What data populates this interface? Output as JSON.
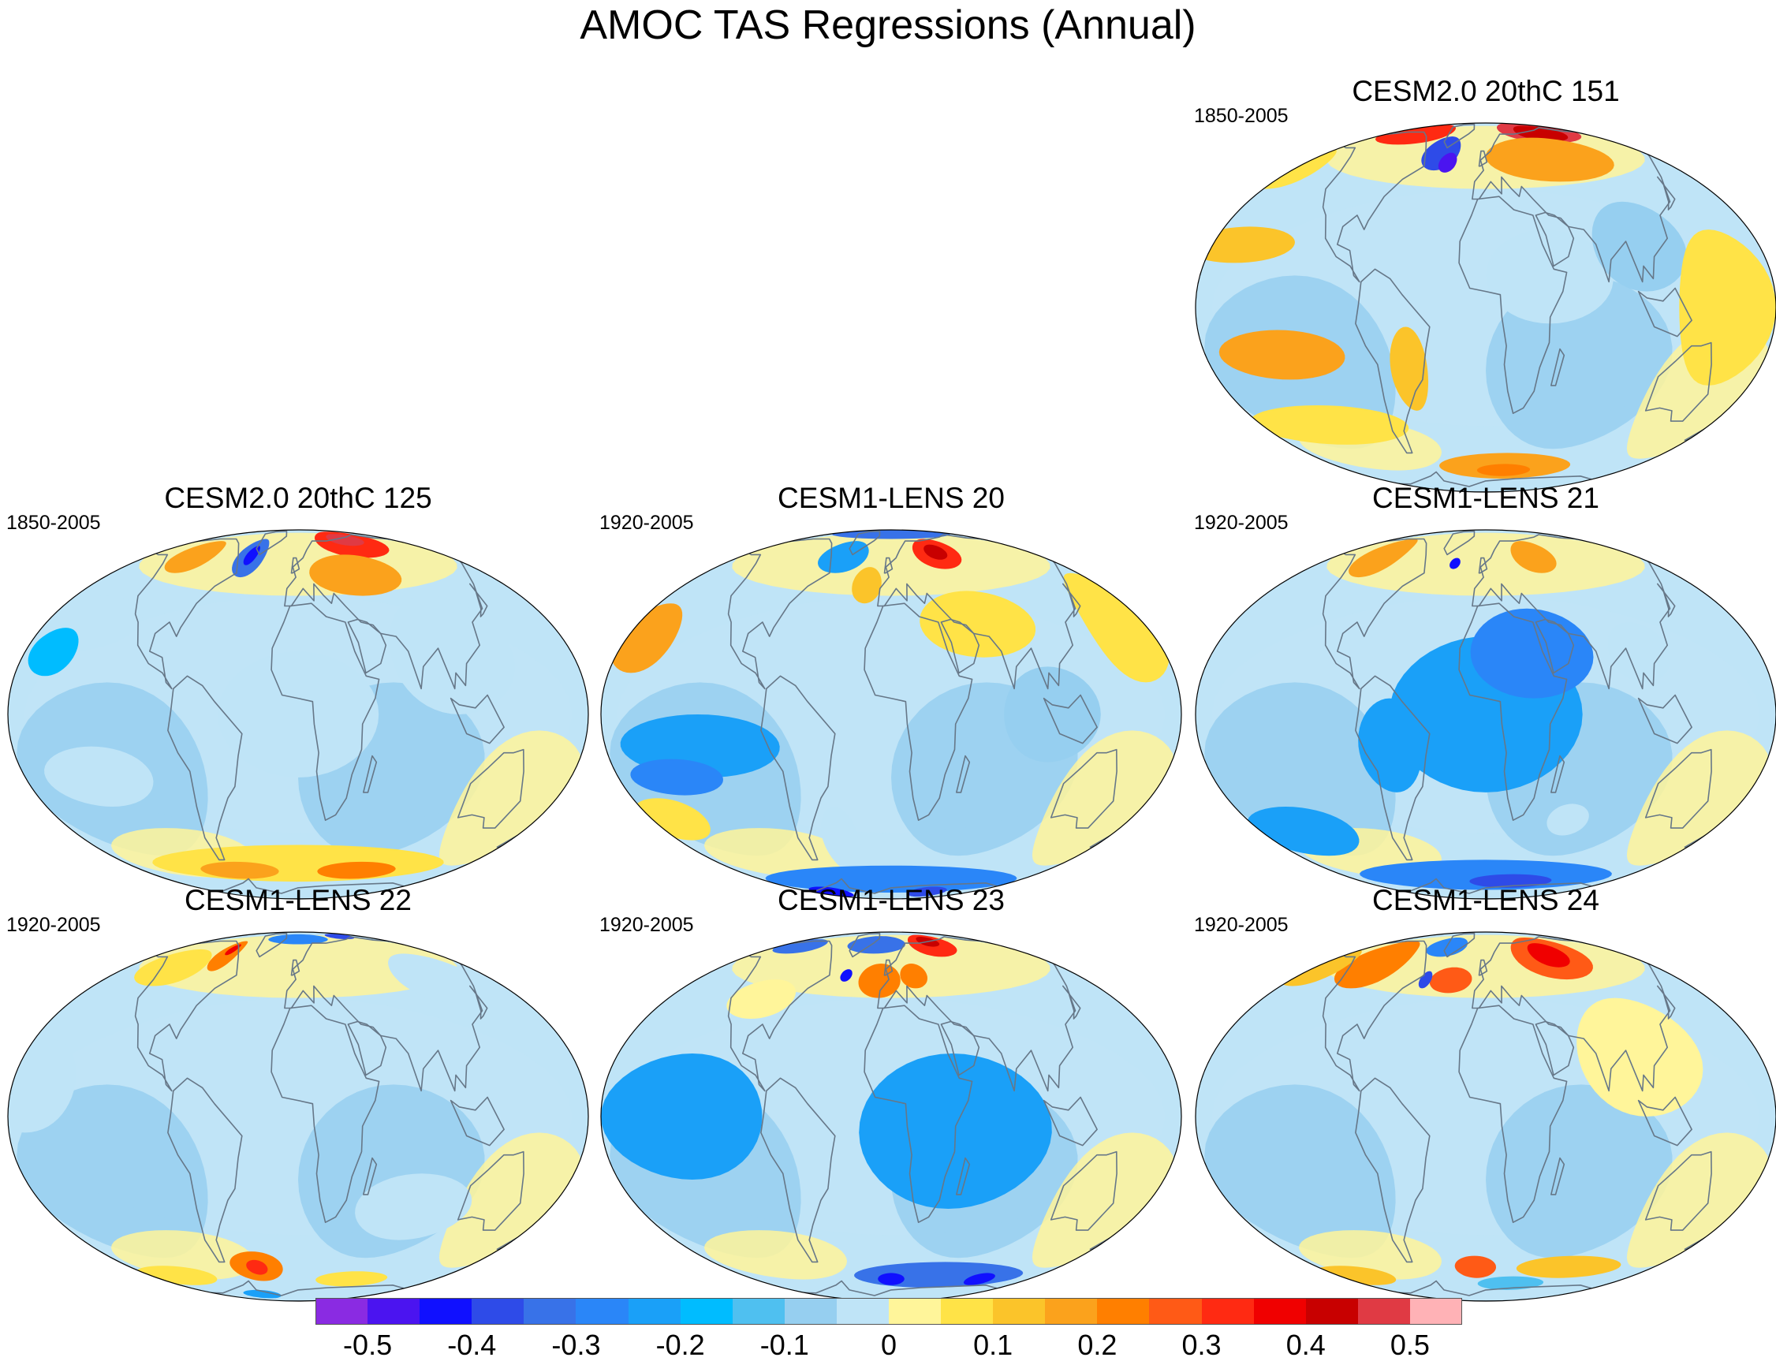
{
  "figure": {
    "title": "AMOC TAS Regressions (Annual)"
  },
  "panels": [
    {
      "id": "p0",
      "title": "CESM2.0 20thC 151",
      "period": "1850-2005",
      "blobs": [
        {
          "lon": 80,
          "lat": 75,
          "rx": 60,
          "ry": 12,
          "c": 20
        },
        {
          "lon": 80,
          "lat": 72,
          "rx": 35,
          "ry": 8,
          "c": 19
        },
        {
          "lon": -100,
          "lat": 72,
          "rx": 50,
          "ry": 10,
          "c": 17
        },
        {
          "lon": -45,
          "lat": 58,
          "rx": 18,
          "ry": 10,
          "c": 3
        },
        {
          "lon": -35,
          "lat": 52,
          "rx": 8,
          "ry": 5,
          "c": 1
        },
        {
          "lon": 60,
          "lat": 55,
          "rx": 60,
          "ry": 12,
          "c": 14
        },
        {
          "lon": -160,
          "lat": 20,
          "rx": 35,
          "ry": 6,
          "c": 13
        },
        {
          "lon": -130,
          "lat": -15,
          "rx": 40,
          "ry": 8,
          "c": 14
        },
        {
          "lon": -50,
          "lat": -20,
          "rx": 12,
          "ry": 14,
          "c": 13
        },
        {
          "lon": 20,
          "lat": -60,
          "rx": 70,
          "ry": 8,
          "c": 14
        },
        {
          "lon": 20,
          "lat": -62,
          "rx": 30,
          "ry": 4,
          "c": 15
        },
        {
          "lon": 40,
          "lat": 10,
          "rx": 40,
          "ry": 15,
          "c": 10
        },
        {
          "lon": 100,
          "lat": 20,
          "rx": 30,
          "ry": 15,
          "c": 9
        },
        {
          "lon": 150,
          "lat": 0,
          "rx": 30,
          "ry": 25,
          "c": 12
        },
        {
          "lon": -170,
          "lat": 50,
          "rx": 25,
          "ry": 10,
          "c": 12
        },
        {
          "lon": -120,
          "lat": -40,
          "rx": 60,
          "ry": 8,
          "c": 12
        }
      ]
    },
    {
      "id": "p1",
      "title": "CESM2.0 20thC 125",
      "period": "1850-2005",
      "blobs": [
        {
          "lon": 70,
          "lat": 70,
          "rx": 45,
          "ry": 12,
          "c": 17
        },
        {
          "lon": 70,
          "lat": 72,
          "rx": 25,
          "ry": 6,
          "c": 20
        },
        {
          "lon": -50,
          "lat": 60,
          "rx": 15,
          "ry": 12,
          "c": 4
        },
        {
          "lon": -50,
          "lat": 60,
          "rx": 6,
          "ry": 6,
          "c": 2
        },
        {
          "lon": -110,
          "lat": 60,
          "rx": 22,
          "ry": 10,
          "c": 14
        },
        {
          "lon": 50,
          "lat": 50,
          "rx": 40,
          "ry": 10,
          "c": 14
        },
        {
          "lon": -150,
          "lat": 30,
          "rx": 40,
          "ry": 10,
          "c": 10
        },
        {
          "lon": -160,
          "lat": 20,
          "rx": 15,
          "ry": 8,
          "c": 7
        },
        {
          "lon": 0,
          "lat": -55,
          "rx": 140,
          "ry": 10,
          "c": 12
        },
        {
          "lon": -60,
          "lat": -58,
          "rx": 40,
          "ry": 5,
          "c": 14
        },
        {
          "lon": 60,
          "lat": -58,
          "rx": 40,
          "ry": 5,
          "c": 15
        },
        {
          "lon": 0,
          "lat": 0,
          "rx": 50,
          "ry": 20,
          "c": 10
        },
        {
          "lon": 100,
          "lat": 20,
          "rx": 40,
          "ry": 20,
          "c": 10
        },
        {
          "lon": -130,
          "lat": -20,
          "rx": 35,
          "ry": 10,
          "c": 10
        }
      ]
    },
    {
      "id": "p2",
      "title": "CESM1-LENS 20",
      "period": "1920-2005",
      "blobs": [
        {
          "lon": 50,
          "lat": 62,
          "rx": 25,
          "ry": 10,
          "c": 17
        },
        {
          "lon": 50,
          "lat": 62,
          "rx": 12,
          "ry": 5,
          "c": 19
        },
        {
          "lon": 0,
          "lat": 80,
          "rx": 120,
          "ry": 8,
          "c": 4
        },
        {
          "lon": -50,
          "lat": 60,
          "rx": 25,
          "ry": 10,
          "c": 6
        },
        {
          "lon": -20,
          "lat": 45,
          "rx": 12,
          "ry": 8,
          "c": 13
        },
        {
          "lon": -165,
          "lat": 25,
          "rx": 20,
          "ry": 12,
          "c": 14
        },
        {
          "lon": -120,
          "lat": -10,
          "rx": 50,
          "ry": 10,
          "c": 6
        },
        {
          "lon": -140,
          "lat": -20,
          "rx": 30,
          "ry": 6,
          "c": 5
        },
        {
          "lon": -160,
          "lat": -35,
          "rx": 25,
          "ry": 8,
          "c": 12
        },
        {
          "lon": -40,
          "lat": -45,
          "rx": 15,
          "ry": 15,
          "c": 10
        },
        {
          "lon": 0,
          "lat": -65,
          "rx": 150,
          "ry": 10,
          "c": 5
        },
        {
          "lon": -100,
          "lat": -75,
          "rx": 30,
          "ry": 6,
          "c": 2
        },
        {
          "lon": 60,
          "lat": -75,
          "rx": 30,
          "ry": 6,
          "c": 3
        },
        {
          "lon": 60,
          "lat": 30,
          "rx": 40,
          "ry": 12,
          "c": 12
        },
        {
          "lon": 160,
          "lat": 30,
          "rx": 25,
          "ry": 20,
          "c": 12
        },
        {
          "lon": 100,
          "lat": 0,
          "rx": 30,
          "ry": 15,
          "c": 9
        }
      ]
    },
    {
      "id": "p3",
      "title": "CESM1-LENS 21",
      "period": "1920-2005",
      "blobs": [
        {
          "lon": -110,
          "lat": 60,
          "rx": 22,
          "ry": 12,
          "c": 14
        },
        {
          "lon": 50,
          "lat": 60,
          "rx": 22,
          "ry": 10,
          "c": 14
        },
        {
          "lon": 0,
          "lat": 0,
          "rx": 60,
          "ry": 25,
          "c": 6
        },
        {
          "lon": 30,
          "lat": 20,
          "rx": 40,
          "ry": 15,
          "c": 5
        },
        {
          "lon": -60,
          "lat": -10,
          "rx": 20,
          "ry": 15,
          "c": 6
        },
        {
          "lon": 0,
          "lat": -62,
          "rx": 140,
          "ry": 10,
          "c": 5
        },
        {
          "lon": 30,
          "lat": -65,
          "rx": 50,
          "ry": 5,
          "c": 3
        },
        {
          "lon": 100,
          "lat": 20,
          "rx": 20,
          "ry": 10,
          "c": 10
        },
        {
          "lon": -140,
          "lat": -40,
          "rx": 40,
          "ry": 10,
          "c": 6
        },
        {
          "lon": 60,
          "lat": -35,
          "rx": 15,
          "ry": 6,
          "c": 10
        },
        {
          "lon": -30,
          "lat": 55,
          "rx": 5,
          "ry": 3,
          "c": 2
        }
      ]
    },
    {
      "id": "p4",
      "title": "CESM1-LENS 22",
      "period": "1920-2005",
      "blobs": [
        {
          "lon": -80,
          "lat": 62,
          "rx": 12,
          "ry": 10,
          "c": 15
        },
        {
          "lon": -80,
          "lat": 65,
          "rx": 5,
          "ry": 4,
          "c": 18
        },
        {
          "lon": 0,
          "lat": 75,
          "rx": 50,
          "ry": 6,
          "c": 5
        },
        {
          "lon": 80,
          "lat": 78,
          "rx": 25,
          "ry": 4,
          "c": 3
        },
        {
          "lon": -120,
          "lat": 55,
          "rx": 30,
          "ry": 10,
          "c": 12
        },
        {
          "lon": -40,
          "lat": -55,
          "rx": 25,
          "ry": 8,
          "c": 15
        },
        {
          "lon": -40,
          "lat": -55,
          "rx": 10,
          "ry": 4,
          "c": 17
        },
        {
          "lon": -170,
          "lat": 10,
          "rx": 30,
          "ry": 15,
          "c": 10
        },
        {
          "lon": 80,
          "lat": -30,
          "rx": 40,
          "ry": 12,
          "c": 10
        },
        {
          "lon": -130,
          "lat": -60,
          "rx": 40,
          "ry": 6,
          "c": 12
        },
        {
          "lon": 60,
          "lat": -62,
          "rx": 40,
          "ry": 5,
          "c": 12
        },
        {
          "lon": -60,
          "lat": -75,
          "rx": 30,
          "ry": 5,
          "c": 6
        },
        {
          "lon": 120,
          "lat": 50,
          "rx": 35,
          "ry": 12,
          "c": 10
        }
      ]
    },
    {
      "id": "p5",
      "title": "CESM1-LENS 23",
      "period": "1920-2005",
      "blobs": [
        {
          "lon": 55,
          "lat": 70,
          "rx": 30,
          "ry": 10,
          "c": 17
        },
        {
          "lon": 55,
          "lat": 72,
          "rx": 15,
          "ry": 5,
          "c": 19
        },
        {
          "lon": -20,
          "lat": 70,
          "rx": 40,
          "ry": 8,
          "c": 4
        },
        {
          "lon": -120,
          "lat": 68,
          "rx": 30,
          "ry": 6,
          "c": 4
        },
        {
          "lon": -10,
          "lat": 48,
          "rx": 18,
          "ry": 8,
          "c": 15
        },
        {
          "lon": 20,
          "lat": 50,
          "rx": 12,
          "ry": 6,
          "c": 15
        },
        {
          "lon": -40,
          "lat": 50,
          "rx": 5,
          "ry": 3,
          "c": 2
        },
        {
          "lon": -130,
          "lat": 0,
          "rx": 50,
          "ry": 20,
          "c": 6
        },
        {
          "lon": 40,
          "lat": -5,
          "rx": 60,
          "ry": 25,
          "c": 6
        },
        {
          "lon": 50,
          "lat": -60,
          "rx": 90,
          "ry": 8,
          "c": 4
        },
        {
          "lon": 0,
          "lat": -62,
          "rx": 15,
          "ry": 4,
          "c": 2
        },
        {
          "lon": 100,
          "lat": -62,
          "rx": 15,
          "ry": 4,
          "c": 2
        },
        {
          "lon": -100,
          "lat": 40,
          "rx": 25,
          "ry": 8,
          "c": 11
        }
      ]
    },
    {
      "id": "p6",
      "title": "CESM1-LENS 24",
      "period": "1920-2005",
      "blobs": [
        {
          "lon": 70,
          "lat": 62,
          "rx": 40,
          "ry": 14,
          "c": 16
        },
        {
          "lon": 70,
          "lat": 62,
          "rx": 20,
          "ry": 8,
          "c": 18
        },
        {
          "lon": -110,
          "lat": 58,
          "rx": 30,
          "ry": 14,
          "c": 15
        },
        {
          "lon": -30,
          "lat": 48,
          "rx": 18,
          "ry": 6,
          "c": 16
        },
        {
          "lon": -50,
          "lat": 68,
          "rx": 25,
          "ry": 8,
          "c": 5
        },
        {
          "lon": -52,
          "lat": 48,
          "rx": 5,
          "ry": 4,
          "c": 3
        },
        {
          "lon": -160,
          "lat": 55,
          "rx": 25,
          "ry": 10,
          "c": 13
        },
        {
          "lon": -10,
          "lat": -55,
          "rx": 20,
          "ry": 6,
          "c": 16
        },
        {
          "lon": 80,
          "lat": -55,
          "rx": 50,
          "ry": 6,
          "c": 13
        },
        {
          "lon": -140,
          "lat": -60,
          "rx": 40,
          "ry": 6,
          "c": 13
        },
        {
          "lon": 100,
          "lat": 20,
          "rx": 40,
          "ry": 20,
          "c": 11
        },
        {
          "lon": 30,
          "lat": -65,
          "rx": 40,
          "ry": 5,
          "c": 8
        }
      ]
    }
  ],
  "colorbar": {
    "labels": [
      "-0.5",
      "-0.4",
      "-0.3",
      "-0.2",
      "-0.1",
      "0",
      "0.1",
      "0.2",
      "0.3",
      "0.4",
      "0.5"
    ],
    "colors": [
      "#8a2be2",
      "#4b14f0",
      "#1010ff",
      "#2e4be8",
      "#3872e8",
      "#2a86f8",
      "#1aa0f8",
      "#00bcff",
      "#4fc0f0",
      "#96cff0",
      "#bfe4f7",
      "#fff59a",
      "#ffe347",
      "#fbc42a",
      "#fba21c",
      "#ff7f00",
      "#ff5a16",
      "#ff2a12",
      "#f00000",
      "#c80000",
      "#e03a44",
      "#ffb2b6"
    ],
    "neutral_index": 10
  },
  "land_color": "#667788"
}
